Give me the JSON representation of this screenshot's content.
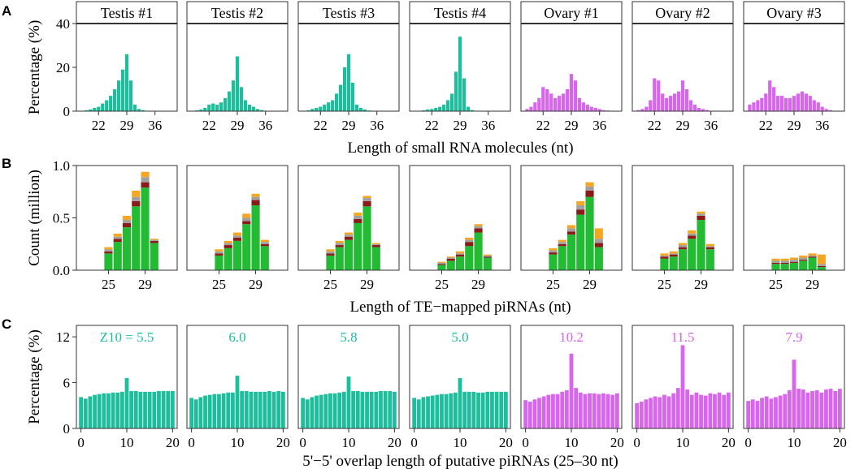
{
  "colors": {
    "testis": "#1dbe9c",
    "ovary": "#d865ee",
    "green": "#22bb33",
    "maroon": "#8b1a1a",
    "gray": "#a0a0a0",
    "orange": "#f5a623"
  },
  "panel_letters": {
    "A": "A",
    "B": "B",
    "C": "C"
  },
  "chart_data": [
    {
      "type": "bar",
      "panel": "A",
      "ylabel": "Percentage (%)",
      "xlabel": "Length of small RNA molecules (nt)",
      "ylim": [
        0,
        40
      ],
      "yticks": [
        "0",
        "20",
        "40"
      ],
      "xlim": [
        16.5,
        41.5
      ],
      "xticks": [
        "22",
        "29",
        "36"
      ],
      "x": [
        18,
        19,
        20,
        21,
        22,
        23,
        24,
        25,
        26,
        27,
        28,
        29,
        30,
        31,
        32,
        33,
        34,
        35,
        36,
        37,
        38
      ],
      "facets": [
        {
          "title": "Testis #1",
          "group": "testis",
          "values": [
            0.2,
            0.4,
            0.8,
            1.5,
            2,
            3.5,
            5,
            7,
            10,
            14,
            19,
            26,
            14,
            3,
            1,
            0.5,
            0.2,
            0,
            0,
            0,
            0
          ]
        },
        {
          "title": "Testis #2",
          "group": "testis",
          "values": [
            0.2,
            0.4,
            0.8,
            1.5,
            3,
            3.5,
            3,
            4,
            6,
            9,
            14,
            25,
            11,
            5,
            3,
            2,
            1,
            0.5,
            0.2,
            0,
            0
          ]
        },
        {
          "title": "Testis #3",
          "group": "testis",
          "values": [
            0.2,
            0.4,
            1,
            1.5,
            2,
            3,
            4,
            5,
            8,
            12,
            20,
            26,
            13,
            3,
            1.5,
            0.8,
            0.3,
            0,
            0,
            0,
            0
          ]
        },
        {
          "title": "Testis #4",
          "group": "testis",
          "values": [
            0,
            0.2,
            0.4,
            0.8,
            1,
            1.5,
            2,
            3,
            5,
            8,
            18,
            34,
            15,
            2,
            0.5,
            0.2,
            0,
            0,
            0,
            0,
            0
          ]
        },
        {
          "title": "Ovary #1",
          "group": "ovary",
          "values": [
            1,
            2,
            4,
            6,
            11,
            10,
            8,
            6,
            7,
            8,
            10,
            17,
            14,
            6,
            4,
            3,
            2,
            1.5,
            1,
            0.5,
            0.3
          ]
        },
        {
          "title": "Ovary #2",
          "group": "ovary",
          "values": [
            0.5,
            1,
            2,
            5,
            15,
            14,
            8,
            6,
            7,
            8,
            9,
            14,
            10,
            5,
            3,
            1.5,
            1,
            0.5,
            0.2,
            0,
            0
          ]
        },
        {
          "title": "Ovary #3",
          "group": "ovary",
          "values": [
            3,
            4,
            5,
            6,
            8,
            14,
            11,
            7,
            7,
            6,
            6,
            7,
            8,
            9,
            8,
            7,
            5,
            4,
            2,
            1,
            0.5
          ]
        }
      ]
    },
    {
      "type": "stacked-bar",
      "panel": "B",
      "ylabel": "Count (million)",
      "xlabel": "Length of TE−mapped piRNAs (nt)",
      "ylim": [
        0,
        1.0
      ],
      "yticks": [
        "0.0",
        "0.5",
        "1.0"
      ],
      "xlim": [
        21.5,
        32.5
      ],
      "xticks": [
        "25",
        "29"
      ],
      "x": [
        25,
        26,
        27,
        28,
        29,
        30
      ],
      "stack_order": [
        "green",
        "maroon",
        "gray",
        "orange"
      ],
      "facets": [
        {
          "stacks": [
            [
              0.16,
              0.02,
              0.02,
              0.02
            ],
            [
              0.27,
              0.03,
              0.02,
              0.03
            ],
            [
              0.41,
              0.04,
              0.03,
              0.04
            ],
            [
              0.61,
              0.05,
              0.04,
              0.06
            ],
            [
              0.79,
              0.05,
              0.05,
              0.05
            ],
            [
              0.26,
              0.02,
              0.01,
              0.01
            ]
          ]
        },
        {
          "stacks": [
            [
              0.14,
              0.02,
              0.02,
              0.02
            ],
            [
              0.21,
              0.03,
              0.02,
              0.02
            ],
            [
              0.28,
              0.03,
              0.02,
              0.03
            ],
            [
              0.44,
              0.03,
              0.03,
              0.04
            ],
            [
              0.62,
              0.05,
              0.03,
              0.03
            ],
            [
              0.23,
              0.02,
              0.02,
              0.02
            ]
          ]
        },
        {
          "stacks": [
            [
              0.14,
              0.02,
              0.02,
              0.02
            ],
            [
              0.22,
              0.02,
              0.02,
              0.02
            ],
            [
              0.29,
              0.03,
              0.02,
              0.02
            ],
            [
              0.45,
              0.04,
              0.03,
              0.03
            ],
            [
              0.61,
              0.05,
              0.03,
              0.02
            ],
            [
              0.22,
              0.02,
              0.01,
              0.01
            ]
          ]
        },
        {
          "stacks": [
            [
              0.05,
              0.01,
              0.01,
              0.01
            ],
            [
              0.09,
              0.02,
              0.01,
              0.01
            ],
            [
              0.13,
              0.02,
              0.01,
              0.02
            ],
            [
              0.23,
              0.04,
              0.02,
              0.02
            ],
            [
              0.36,
              0.04,
              0.02,
              0.02
            ],
            [
              0.12,
              0.01,
              0.01,
              0.01
            ]
          ]
        },
        {
          "stacks": [
            [
              0.15,
              0.02,
              0.02,
              0.02
            ],
            [
              0.23,
              0.02,
              0.02,
              0.02
            ],
            [
              0.34,
              0.03,
              0.03,
              0.03
            ],
            [
              0.53,
              0.05,
              0.04,
              0.04
            ],
            [
              0.7,
              0.06,
              0.04,
              0.04
            ],
            [
              0.22,
              0.04,
              0.04,
              0.1
            ]
          ]
        },
        {
          "stacks": [
            [
              0.11,
              0.02,
              0.01,
              0.02
            ],
            [
              0.13,
              0.02,
              0.01,
              0.02
            ],
            [
              0.2,
              0.02,
              0.02,
              0.02
            ],
            [
              0.3,
              0.03,
              0.02,
              0.03
            ],
            [
              0.48,
              0.04,
              0.02,
              0.02
            ],
            [
              0.2,
              0.02,
              0.01,
              0.02
            ]
          ]
        },
        {
          "stacks": [
            [
              0.06,
              0.01,
              0.02,
              0.02
            ],
            [
              0.06,
              0.01,
              0.02,
              0.02
            ],
            [
              0.07,
              0.01,
              0.02,
              0.02
            ],
            [
              0.09,
              0.01,
              0.02,
              0.02
            ],
            [
              0.12,
              0.01,
              0.01,
              0.02
            ],
            [
              0.03,
              0.01,
              0.02,
              0.09
            ]
          ]
        }
      ]
    },
    {
      "type": "bar",
      "panel": "C",
      "ylabel": "Percentage (%)",
      "xlabel": "5'−5' overlap length of putative piRNAs (25–30 nt)",
      "ylim": [
        0,
        13.5
      ],
      "yticks": [
        "0",
        "6",
        "12"
      ],
      "xlim": [
        -1,
        21
      ],
      "xticks": [
        "0",
        "10",
        "20"
      ],
      "x": [
        0,
        1,
        2,
        3,
        4,
        5,
        6,
        7,
        8,
        9,
        10,
        11,
        12,
        13,
        14,
        15,
        16,
        17,
        18,
        19,
        20
      ],
      "facets": [
        {
          "annotation": "Z10 = 5.5",
          "group": "testis",
          "values": [
            4.1,
            3.9,
            4.2,
            4.4,
            4.5,
            4.6,
            4.6,
            4.7,
            4.7,
            4.8,
            6.6,
            4.9,
            4.9,
            4.8,
            4.8,
            4.8,
            4.8,
            4.9,
            4.9,
            4.9,
            4.9
          ]
        },
        {
          "annotation": "6.0",
          "group": "testis",
          "values": [
            4.0,
            3.8,
            4.1,
            4.3,
            4.4,
            4.5,
            4.5,
            4.6,
            4.7,
            4.7,
            6.9,
            4.9,
            4.9,
            4.8,
            4.8,
            4.8,
            4.8,
            4.9,
            4.8,
            4.9,
            4.8
          ]
        },
        {
          "annotation": "5.8",
          "group": "testis",
          "values": [
            4.0,
            3.8,
            4.1,
            4.3,
            4.4,
            4.5,
            4.6,
            4.6,
            4.7,
            4.8,
            6.8,
            4.9,
            4.9,
            4.8,
            4.8,
            4.8,
            4.8,
            4.9,
            4.9,
            4.9,
            4.8
          ]
        },
        {
          "annotation": "5.0",
          "group": "testis",
          "values": [
            4.0,
            3.8,
            4.1,
            4.2,
            4.3,
            4.4,
            4.5,
            4.5,
            4.6,
            4.7,
            6.6,
            4.8,
            4.8,
            4.8,
            4.7,
            4.7,
            4.8,
            4.8,
            4.8,
            4.8,
            4.8
          ]
        },
        {
          "annotation": "10.2",
          "group": "ovary",
          "values": [
            3.7,
            3.5,
            3.8,
            4.0,
            4.2,
            4.4,
            4.5,
            4.5,
            4.8,
            5.0,
            9.8,
            5.3,
            4.7,
            4.5,
            4.6,
            4.6,
            4.5,
            4.6,
            4.5,
            4.4,
            4.6
          ]
        },
        {
          "annotation": "11.5",
          "group": "ovary",
          "values": [
            3.3,
            3.5,
            3.8,
            4.0,
            4.2,
            4.1,
            4.4,
            4.2,
            4.6,
            5.3,
            10.9,
            5.1,
            4.4,
            4.7,
            4.4,
            4.3,
            4.6,
            4.5,
            4.7,
            4.4,
            4.7
          ]
        },
        {
          "annotation": "7.9",
          "group": "ovary",
          "values": [
            3.6,
            3.8,
            3.6,
            4.0,
            4.2,
            3.9,
            4.1,
            4.3,
            4.5,
            5.0,
            9.0,
            5.2,
            5.1,
            4.7,
            4.9,
            5.0,
            4.7,
            5.1,
            5.2,
            4.9,
            5.2
          ]
        }
      ]
    }
  ]
}
